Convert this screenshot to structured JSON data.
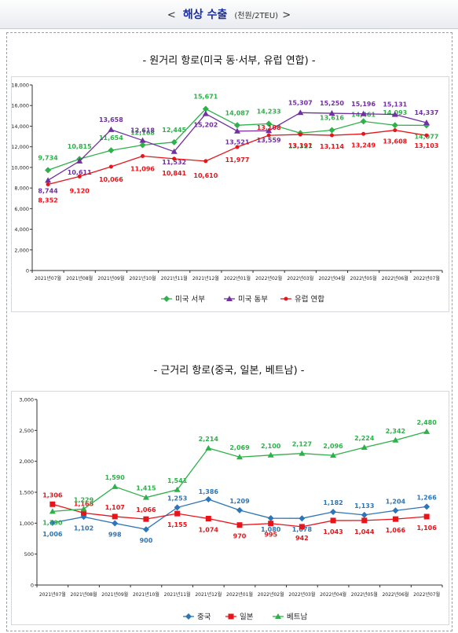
{
  "header": {
    "left_arrow": "<",
    "title": "해상 수출",
    "unit": "(천원/2TEU)",
    "right_arrow": ">"
  },
  "sections": [
    {
      "title": "- 원거리 항로(미국 동·서부, 유럽 연합) -"
    },
    {
      "title": "- 근거리 항로(중국, 일본, 베트남) -"
    }
  ],
  "chart_data": [
    {
      "type": "line",
      "title": "",
      "categories": [
        "2021년07월",
        "2021년08월",
        "2021년09월",
        "2021년10월",
        "2021년11월",
        "2021년12월",
        "2022년01월",
        "2022년02월",
        "2022년03월",
        "2022년04월",
        "2022년05월",
        "2022년06월",
        "2022년07월"
      ],
      "ylim": [
        0,
        18000
      ],
      "yticks": [
        "0",
        "2,000",
        "4,000",
        "6,000",
        "8,000",
        "10,000",
        "12,000",
        "14,000",
        "16,000",
        "18,000"
      ],
      "grid": false,
      "legend_position": "bottom",
      "series": [
        {
          "name": "미국 서부",
          "color": "#2eb04a",
          "marker": "diamond",
          "values": [
            9734,
            10815,
            11654,
            12168,
            12445,
            15671,
            14087,
            14233,
            13327,
            13616,
            14461,
            14093,
            14077
          ],
          "labels": [
            "9,734",
            "10,815",
            "11,654",
            "12,168",
            "12,445",
            "15,671",
            "14,087",
            "14,233",
            "13,327",
            "13,616",
            "14,461",
            "14,093",
            "14,077"
          ]
        },
        {
          "name": "미국 동부",
          "color": "#7030a0",
          "marker": "triangle",
          "values": [
            8744,
            10611,
            13658,
            12618,
            11532,
            15202,
            13521,
            13559,
            15307,
            15250,
            15196,
            15131,
            14337
          ],
          "labels": [
            "8,744",
            "10,611",
            "13,658",
            "12,618",
            "11,532",
            "15,202",
            "13,521",
            "13,559",
            "15,307",
            "15,250",
            "15,196",
            "15,131",
            "14,337"
          ]
        },
        {
          "name": "유럽 연합",
          "color": "#e8141b",
          "marker": "circle",
          "values": [
            8352,
            9120,
            10066,
            11096,
            10841,
            10610,
            11977,
            13108,
            13191,
            13114,
            13249,
            13608,
            13103
          ],
          "labels": [
            "8,352",
            "9,120",
            "10,066",
            "11,096",
            "10,841",
            "10,610",
            "11,977",
            "13,108",
            "13,191",
            "13,114",
            "13,249",
            "13,608",
            "13,103"
          ]
        }
      ]
    },
    {
      "type": "line",
      "title": "",
      "categories": [
        "2021년07월",
        "2021년08월",
        "2021년09월",
        "2021년10월",
        "2021년11월",
        "2021년12월",
        "2022년01월",
        "2022년02월",
        "2022년03월",
        "2022년04월",
        "2022년05월",
        "2022년06월",
        "2022년07월"
      ],
      "ylim": [
        0,
        3000
      ],
      "yticks": [
        "0",
        "500",
        "1,000",
        "1,500",
        "2,000",
        "2,500",
        "3,000"
      ],
      "grid": false,
      "legend_position": "bottom",
      "series": [
        {
          "name": "중국",
          "color": "#2e75b6",
          "marker": "diamond",
          "values": [
            1006,
            1102,
            998,
            900,
            1253,
            1386,
            1209,
            1080,
            1078,
            1182,
            1133,
            1204,
            1266
          ],
          "labels": [
            "1,006",
            "1,102",
            "998",
            "900",
            "1,253",
            "1,386",
            "1,209",
            "1,080",
            "1,078",
            "1,182",
            "1,133",
            "1,204",
            "1,266"
          ]
        },
        {
          "name": "일본",
          "color": "#e8141b",
          "marker": "square",
          "values": [
            1306,
            1165,
            1107,
            1066,
            1155,
            1074,
            970,
            995,
            942,
            1043,
            1044,
            1066,
            1106
          ],
          "labels": [
            "1,306",
            "1,165",
            "1,107",
            "1,066",
            "1,155",
            "1,074",
            "970",
            "995",
            "942",
            "1,043",
            "1,044",
            "1,066",
            "1,106"
          ]
        },
        {
          "name": "베트남",
          "color": "#2eb04a",
          "marker": "triangle",
          "values": [
            1190,
            1229,
            1590,
            1415,
            1541,
            2214,
            2069,
            2100,
            2127,
            2096,
            2224,
            2342,
            2480
          ],
          "labels": [
            "1,190",
            "1,229",
            "1,590",
            "1,415",
            "1,541",
            "2,214",
            "2,069",
            "2,100",
            "2,127",
            "2,096",
            "2,224",
            "2,342",
            "2,480"
          ]
        }
      ]
    }
  ]
}
